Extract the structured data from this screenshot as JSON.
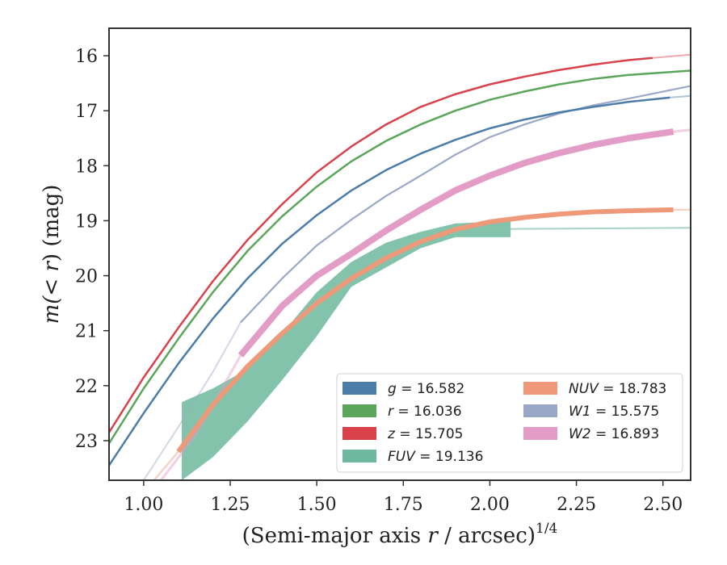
{
  "chart_data": {
    "type": "line",
    "xlabel_main": "(Semi-major axis",
    "xlabel_var": "r",
    "xlabel_tail": "/ arcsec)",
    "xlabel_sup": "1/4",
    "ylabel_main": "m(",
    "ylabel_tail": ") (mag)",
    "ylabel_var": "< r",
    "xlim": [
      0.9,
      2.58
    ],
    "ylim": [
      23.72,
      15.5
    ],
    "y_inverted": true,
    "x_ticks": [
      "1.00",
      "1.25",
      "1.50",
      "1.75",
      "2.00",
      "2.25",
      "2.50"
    ],
    "y_ticks": [
      "16",
      "17",
      "18",
      "19",
      "20",
      "21",
      "22",
      "23"
    ],
    "grid": false,
    "legend_position": "lower-right",
    "series": [
      {
        "name": "g",
        "label_value": "16.582",
        "color": "#4C7CA8",
        "x": [
          0.9,
          1.0,
          1.1,
          1.2,
          1.3,
          1.4,
          1.5,
          1.6,
          1.7,
          1.8,
          1.9,
          2.0,
          2.1,
          2.2,
          2.3,
          2.4,
          2.52
        ],
        "y": [
          23.45,
          22.5,
          21.6,
          20.78,
          20.05,
          19.42,
          18.9,
          18.45,
          18.08,
          17.78,
          17.53,
          17.32,
          17.16,
          17.03,
          16.93,
          16.84,
          16.76
        ],
        "extrapolated_x": [
          2.52,
          2.58
        ],
        "extrapolated_y": [
          16.76,
          16.73
        ]
      },
      {
        "name": "r",
        "label_value": "16.036",
        "color": "#5BA65B",
        "x": [
          0.9,
          1.0,
          1.1,
          1.2,
          1.3,
          1.4,
          1.5,
          1.6,
          1.7,
          1.8,
          1.9,
          2.0,
          2.1,
          2.2,
          2.3,
          2.4,
          2.58
        ],
        "y": [
          23.05,
          22.05,
          21.15,
          20.3,
          19.55,
          18.92,
          18.38,
          17.92,
          17.55,
          17.25,
          17.0,
          16.8,
          16.65,
          16.52,
          16.42,
          16.35,
          16.27
        ],
        "extrapolated_x": [],
        "extrapolated_y": []
      },
      {
        "name": "z",
        "label_value": "15.705",
        "color": "#D9424B",
        "x": [
          0.9,
          1.0,
          1.1,
          1.2,
          1.3,
          1.4,
          1.5,
          1.6,
          1.7,
          1.8,
          1.9,
          2.0,
          2.1,
          2.2,
          2.3,
          2.4,
          2.47
        ],
        "y": [
          22.85,
          21.85,
          20.95,
          20.1,
          19.35,
          18.7,
          18.12,
          17.65,
          17.25,
          16.93,
          16.7,
          16.52,
          16.38,
          16.26,
          16.16,
          16.08,
          16.04
        ],
        "extrapolated_x": [
          2.47,
          2.58
        ],
        "extrapolated_y": [
          16.04,
          15.98
        ]
      },
      {
        "name": "W1",
        "label_value": "15.575",
        "color": "#9AA8C8",
        "x": [
          1.28,
          1.4,
          1.5,
          1.6,
          1.7,
          1.8,
          1.9,
          2.0,
          2.1,
          2.2,
          2.3,
          2.4,
          2.58
        ],
        "y": [
          20.85,
          20.05,
          19.45,
          18.98,
          18.55,
          18.18,
          17.8,
          17.48,
          17.25,
          17.05,
          16.9,
          16.78,
          16.55
        ],
        "extrapolated_x": [
          1.0,
          1.1,
          1.2,
          1.28
        ],
        "extrapolated_y": [
          23.72,
          22.75,
          21.75,
          20.85
        ]
      },
      {
        "name": "W2",
        "label_value": "16.893",
        "color": "#E29CC6",
        "x": [
          1.28,
          1.4,
          1.5,
          1.6,
          1.7,
          1.8,
          1.9,
          2.0,
          2.1,
          2.2,
          2.3,
          2.4,
          2.53
        ],
        "y": [
          21.45,
          20.55,
          20.0,
          19.6,
          19.18,
          18.8,
          18.45,
          18.18,
          17.95,
          17.77,
          17.62,
          17.5,
          17.38
        ],
        "extrapolated_x": [
          1.05,
          1.15,
          1.28,
          2.53,
          2.58
        ],
        "extrapolated_y": [
          23.72,
          22.9,
          21.45,
          17.38,
          17.35
        ]
      },
      {
        "name": "NUV",
        "label_value": "18.783",
        "color": "#EE9A7A",
        "x": [
          1.1,
          1.2,
          1.3,
          1.4,
          1.5,
          1.6,
          1.7,
          1.8,
          1.9,
          2.0,
          2.1,
          2.2,
          2.3,
          2.4,
          2.53
        ],
        "y": [
          23.2,
          22.35,
          21.65,
          21.05,
          20.5,
          20.05,
          19.68,
          19.38,
          19.16,
          19.02,
          18.94,
          18.88,
          18.84,
          18.82,
          18.8
        ],
        "extrapolated_x": [
          1.03,
          1.1,
          2.53,
          2.58
        ],
        "extrapolated_y": [
          23.72,
          23.2,
          18.8,
          18.8
        ]
      },
      {
        "name": "FUV",
        "label_value": "19.136",
        "color": "#6DB89E",
        "band_x": [
          1.11,
          1.2,
          1.3,
          1.4,
          1.5,
          1.6,
          1.7,
          1.8,
          1.9,
          2.06
        ],
        "band_upper": [
          22.3,
          22.05,
          21.7,
          21.05,
          20.3,
          19.75,
          19.4,
          19.2,
          19.05,
          19.0
        ],
        "band_lower": [
          23.72,
          23.3,
          22.65,
          21.9,
          21.1,
          20.2,
          19.85,
          19.5,
          19.3,
          19.3
        ],
        "extrapolated_x": [
          2.06,
          2.58
        ],
        "extrapolated_y": [
          19.15,
          19.13
        ]
      }
    ],
    "legend": [
      {
        "name": "g",
        "value": "16.582",
        "color": "#4C7CA8",
        "col": 0,
        "row": 0
      },
      {
        "name": "r",
        "value": "16.036",
        "color": "#5BA65B",
        "col": 0,
        "row": 1
      },
      {
        "name": "z",
        "value": "15.705",
        "color": "#D9424B",
        "col": 0,
        "row": 2
      },
      {
        "name": "FUV",
        "value": "19.136",
        "color": "#6DB89E",
        "col": 0,
        "row": 3
      },
      {
        "name": "NUV",
        "value": "18.783",
        "color": "#EE9A7A",
        "col": 1,
        "row": 0
      },
      {
        "name": "W1",
        "value": "15.575",
        "color": "#9AA8C8",
        "col": 1,
        "row": 1
      },
      {
        "name": "W2",
        "value": "16.893",
        "color": "#E29CC6",
        "col": 1,
        "row": 2
      }
    ]
  }
}
